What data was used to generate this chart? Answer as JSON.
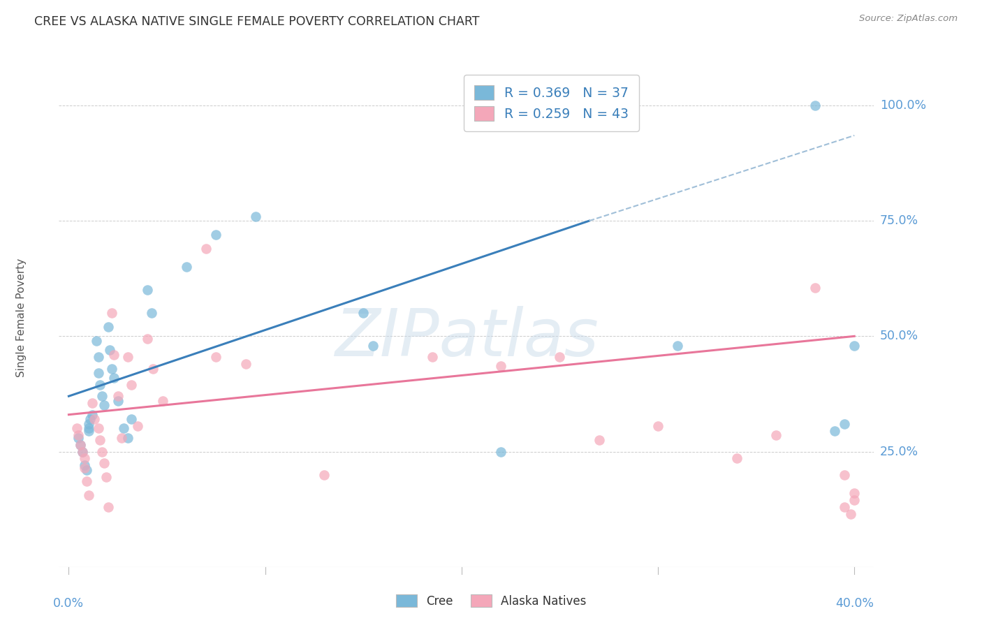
{
  "title": "CREE VS ALASKA NATIVE SINGLE FEMALE POVERTY CORRELATION CHART",
  "source": "Source: ZipAtlas.com",
  "ylabel": "Single Female Poverty",
  "y_tick_labels": [
    "100.0%",
    "75.0%",
    "50.0%",
    "25.0%"
  ],
  "y_tick_values": [
    1.0,
    0.75,
    0.5,
    0.25
  ],
  "x_tick_positions": [
    0.0,
    0.1,
    0.2,
    0.3,
    0.4
  ],
  "xlim": [
    -0.005,
    0.41
  ],
  "ylim": [
    0.0,
    1.08
  ],
  "watermark": "ZIPatlas",
  "legend_r_cree": "R = 0.369",
  "legend_n_cree": "N = 37",
  "legend_r_alaska": "R = 0.259",
  "legend_n_alaska": "N = 43",
  "cree_color": "#7ab8d9",
  "alaska_color": "#f4a7b9",
  "cree_line_color": "#3a7fba",
  "alaska_line_color": "#e8769a",
  "dashed_line_color": "#a0bfd8",
  "background_color": "#ffffff",
  "grid_color": "#cccccc",
  "title_color": "#333333",
  "axis_label_color": "#5b9bd5",
  "legend_label_color": "#3a7fba",
  "cree_scatter_x": [
    0.005,
    0.006,
    0.007,
    0.008,
    0.009,
    0.01,
    0.01,
    0.01,
    0.011,
    0.012,
    0.014,
    0.015,
    0.015,
    0.016,
    0.017,
    0.018,
    0.02,
    0.021,
    0.022,
    0.023,
    0.025,
    0.028,
    0.03,
    0.032,
    0.04,
    0.042,
    0.06,
    0.075,
    0.095,
    0.15,
    0.155,
    0.22,
    0.31,
    0.38,
    0.39,
    0.395,
    0.4
  ],
  "cree_scatter_y": [
    0.28,
    0.265,
    0.25,
    0.22,
    0.21,
    0.295,
    0.3,
    0.31,
    0.32,
    0.33,
    0.49,
    0.42,
    0.455,
    0.395,
    0.37,
    0.35,
    0.52,
    0.47,
    0.43,
    0.41,
    0.36,
    0.3,
    0.28,
    0.32,
    0.6,
    0.55,
    0.65,
    0.72,
    0.76,
    0.55,
    0.48,
    0.25,
    0.48,
    1.0,
    0.295,
    0.31,
    0.48
  ],
  "alaska_scatter_x": [
    0.004,
    0.005,
    0.006,
    0.007,
    0.008,
    0.008,
    0.009,
    0.01,
    0.012,
    0.013,
    0.015,
    0.016,
    0.017,
    0.018,
    0.019,
    0.02,
    0.022,
    0.023,
    0.025,
    0.027,
    0.03,
    0.032,
    0.035,
    0.04,
    0.043,
    0.048,
    0.07,
    0.075,
    0.09,
    0.13,
    0.185,
    0.22,
    0.25,
    0.27,
    0.3,
    0.34,
    0.36,
    0.38,
    0.395,
    0.4,
    0.395,
    0.398,
    0.4
  ],
  "alaska_scatter_y": [
    0.3,
    0.285,
    0.265,
    0.25,
    0.235,
    0.215,
    0.185,
    0.155,
    0.355,
    0.32,
    0.3,
    0.275,
    0.25,
    0.225,
    0.195,
    0.13,
    0.55,
    0.46,
    0.37,
    0.28,
    0.455,
    0.395,
    0.305,
    0.495,
    0.43,
    0.36,
    0.69,
    0.455,
    0.44,
    0.2,
    0.455,
    0.435,
    0.455,
    0.275,
    0.305,
    0.235,
    0.285,
    0.605,
    0.2,
    0.16,
    0.13,
    0.115,
    0.145
  ],
  "cree_line_x": [
    0.0,
    0.265
  ],
  "cree_line_y": [
    0.37,
    0.75
  ],
  "dashed_line_x": [
    0.265,
    0.4
  ],
  "dashed_line_y": [
    0.75,
    0.935
  ],
  "alaska_line_x": [
    0.0,
    0.4
  ],
  "alaska_line_y": [
    0.33,
    0.5
  ],
  "bottom_legend_labels": [
    "Cree",
    "Alaska Natives"
  ]
}
